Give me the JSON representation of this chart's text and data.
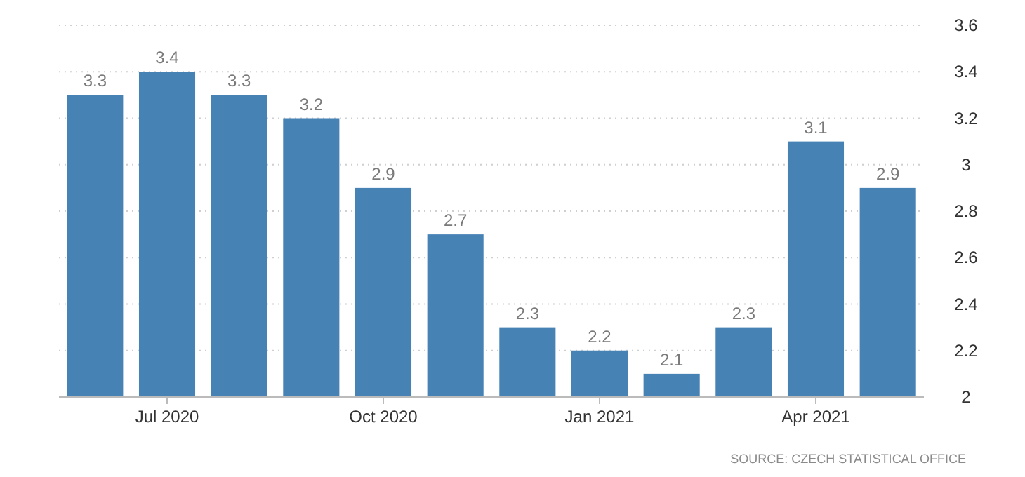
{
  "chart_data": {
    "type": "bar",
    "categories": [
      null,
      "Jul 2020",
      null,
      null,
      "Oct 2020",
      null,
      null,
      "Jan 2021",
      null,
      null,
      "Apr 2021",
      null
    ],
    "values": [
      3.3,
      3.4,
      3.3,
      3.2,
      2.9,
      2.7,
      2.3,
      2.2,
      2.1,
      2.3,
      3.1,
      2.9
    ],
    "color": "#4682b4",
    "ylim": [
      2,
      3.6
    ],
    "yticks": [
      2,
      2.2,
      2.4,
      2.6,
      2.8,
      3,
      3.2,
      3.4,
      3.6
    ],
    "grid": "y",
    "data_labels": true,
    "annotations": [
      "SOURCE: CZECH STATISTICAL OFFICE"
    ]
  }
}
